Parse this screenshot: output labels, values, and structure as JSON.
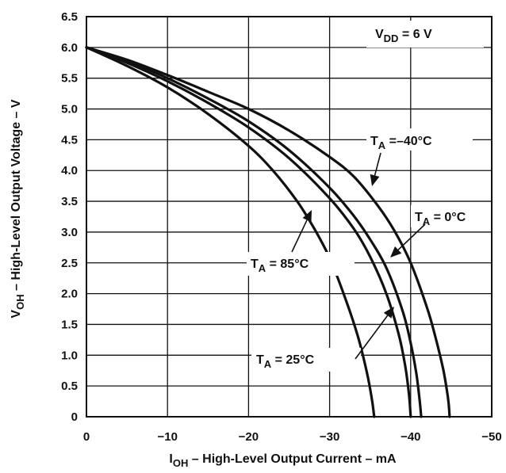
{
  "chart_data": {
    "type": "line",
    "title": "",
    "xlabel": "I_OH – High-Level Output Current – mA",
    "ylabel": "V_OH – High-Level Output Voltage – V",
    "xlabel_main": "I",
    "xlabel_sub": "OH",
    "xlabel_rest": " – High-Level Output Current – mA",
    "ylabel_main": "V",
    "ylabel_sub": "OH",
    "ylabel_rest": " – High-Level Output Voltage – V",
    "xlim": [
      0,
      -50
    ],
    "ylim": [
      0,
      6.5
    ],
    "x_ticks": [
      0,
      -10,
      -20,
      -30,
      -40,
      -50
    ],
    "x_tick_labels": [
      "0",
      "−10",
      "−20",
      "−30",
      "−40",
      "−50"
    ],
    "y_ticks": [
      0,
      0.5,
      1.0,
      1.5,
      2.0,
      2.5,
      3.0,
      3.5,
      4.0,
      4.5,
      5.0,
      5.5,
      6.0,
      6.5
    ],
    "y_tick_labels": [
      "0",
      "0.5",
      "1.0",
      "1.5",
      "2.0",
      "2.5",
      "3.0",
      "3.5",
      "4.0",
      "4.5",
      "5.0",
      "5.5",
      "6.0",
      "6.5"
    ],
    "grid": true,
    "condition": {
      "main": "V",
      "sub": "DD",
      "rest": " = 6 V"
    },
    "series": [
      {
        "name": "T_A = –40°C",
        "label_main": "T",
        "label_sub": "A",
        "label_rest": " =–40°C",
        "x": [
          0,
          -5,
          -10,
          -15,
          -20,
          -25,
          -30,
          -33,
          -36,
          -38,
          -40,
          -42,
          -43,
          -44,
          -44.5,
          -44.7,
          -44.8
        ],
        "y": [
          6.0,
          5.8,
          5.55,
          5.28,
          5.0,
          4.65,
          4.22,
          3.9,
          3.42,
          3.02,
          2.5,
          1.78,
          1.32,
          0.78,
          0.4,
          0.2,
          0
        ]
      },
      {
        "name": "T_A = 0°C",
        "label_main": "T",
        "label_sub": "A",
        "label_rest": " = 0°C",
        "x": [
          0,
          -5,
          -10,
          -15,
          -20,
          -25,
          -30,
          -33,
          -35,
          -37,
          -39,
          -40,
          -40.7,
          -41.1,
          -41.3
        ],
        "y": [
          6.0,
          5.78,
          5.5,
          5.17,
          4.8,
          4.33,
          3.72,
          3.26,
          2.88,
          2.42,
          1.72,
          1.2,
          0.7,
          0.28,
          0
        ]
      },
      {
        "name": "T_A = 25°C",
        "label_main": "T",
        "label_sub": "A",
        "label_rest": " = 25°C",
        "x": [
          0,
          -5,
          -10,
          -15,
          -20,
          -25,
          -30,
          -33,
          -35,
          -37,
          -38.5,
          -39.3,
          -39.8,
          -40
        ],
        "y": [
          6.0,
          5.75,
          5.45,
          5.1,
          4.7,
          4.2,
          3.55,
          3.05,
          2.6,
          2.0,
          1.35,
          0.85,
          0.35,
          0
        ]
      },
      {
        "name": "T_A = 85°C",
        "label_main": "T",
        "label_sub": "A",
        "label_rest": " = 85°C",
        "x": [
          0,
          -5,
          -10,
          -15,
          -20,
          -23,
          -26,
          -28,
          -30,
          -32,
          -33.5,
          -34.6,
          -35.2,
          -35.5
        ],
        "y": [
          6.0,
          5.7,
          5.35,
          4.92,
          4.4,
          4.0,
          3.5,
          3.08,
          2.58,
          1.9,
          1.3,
          0.72,
          0.3,
          0
        ]
      }
    ]
  }
}
